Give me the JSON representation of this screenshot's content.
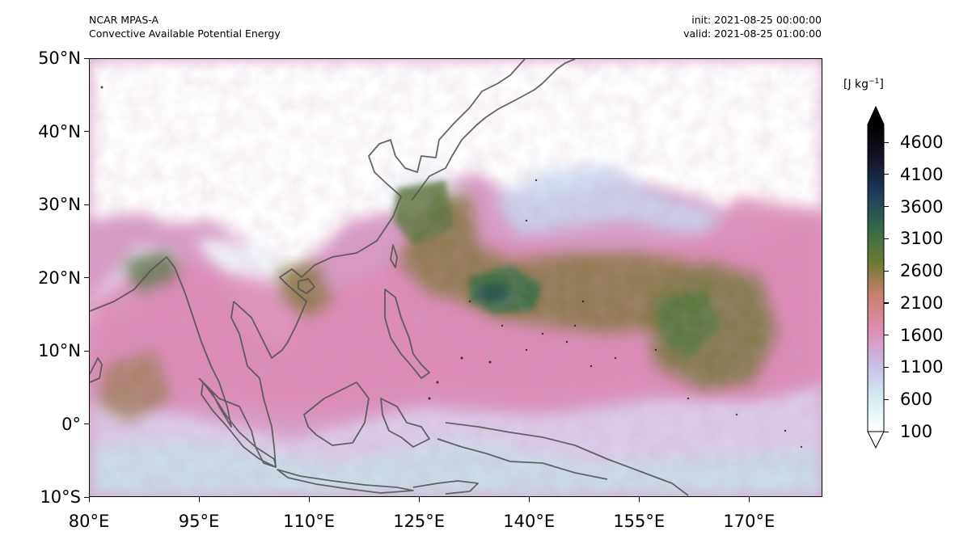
{
  "header": {
    "model_name": "NCAR MPAS-A",
    "field_name": "Convective Available Potential Energy",
    "init_time": "init: 2021-08-25 00:00:00",
    "valid_time": "valid: 2021-08-25 01:00:00"
  },
  "map": {
    "projection": "PlateCarree",
    "lon_range": [
      80,
      180
    ],
    "lat_range": [
      -10,
      50
    ],
    "lat_ticks": [
      {
        "value": 50,
        "label": "50°N"
      },
      {
        "value": 40,
        "label": "40°N"
      },
      {
        "value": 30,
        "label": "30°N"
      },
      {
        "value": 20,
        "label": "20°N"
      },
      {
        "value": 10,
        "label": "10°N"
      },
      {
        "value": 0,
        "label": "0°"
      },
      {
        "value": -10,
        "label": "10°S"
      }
    ],
    "lon_ticks": [
      {
        "value": 80,
        "label": "80°E"
      },
      {
        "value": 95,
        "label": "95°E"
      },
      {
        "value": 110,
        "label": "110°E"
      },
      {
        "value": 125,
        "label": "125°E"
      },
      {
        "value": 140,
        "label": "140°E"
      },
      {
        "value": 155,
        "label": "155°E"
      },
      {
        "value": 170,
        "label": "170°E"
      }
    ],
    "coastline_color": "#555555"
  },
  "colorbar": {
    "units_prefix": "[J kg",
    "units_exp": "−1",
    "units_suffix": "]",
    "colormap": "cubehelix-like",
    "min": 100,
    "max": 4600,
    "extend": "both",
    "ticks": [
      "4600",
      "4100",
      "3600",
      "3100",
      "2600",
      "2100",
      "1600",
      "1100",
      "600",
      "100"
    ],
    "stops": [
      "#ffffff",
      "#d4ecf0",
      "#c8bce6",
      "#e08cb4",
      "#c8806c",
      "#6a7a30",
      "#2f6a4a",
      "#1e3a5a",
      "#141428",
      "#000000"
    ]
  }
}
